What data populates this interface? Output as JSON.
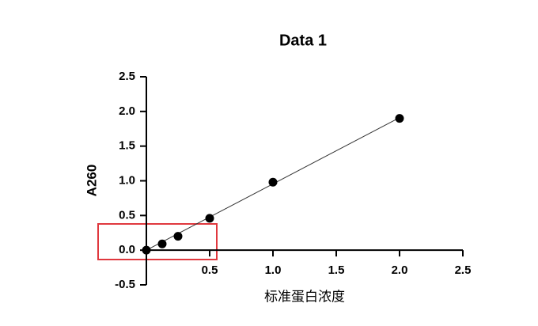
{
  "chart_data": {
    "type": "scatter",
    "title": "Data 1",
    "x_label": "标准蛋白浓度",
    "y_label": "A260",
    "x": [
      0,
      0.125,
      0.25,
      0.5,
      1.0,
      2.0
    ],
    "values": [
      0,
      0.09,
      0.2,
      0.46,
      0.98,
      1.9
    ],
    "color": "#000000",
    "fit": {
      "x": [
        0,
        2.0
      ],
      "values": [
        0,
        1.91
      ]
    },
    "xlim": [
      0,
      2.5
    ],
    "xticks": [
      0.5,
      {
        "value": 1.0,
        "label": "1.0"
      },
      1.5,
      {
        "value": 2.0,
        "label": "2.0"
      },
      2.5
    ],
    "ylim": [
      -0.5,
      2.5
    ],
    "yticks": [
      -0.5,
      {
        "value": 0.0,
        "label": "0.0"
      },
      0.5,
      {
        "value": 1.0,
        "label": "1.0"
      },
      1.5,
      {
        "value": 2.0,
        "label": "2.0"
      },
      2.5
    ],
    "grid": false
  }
}
